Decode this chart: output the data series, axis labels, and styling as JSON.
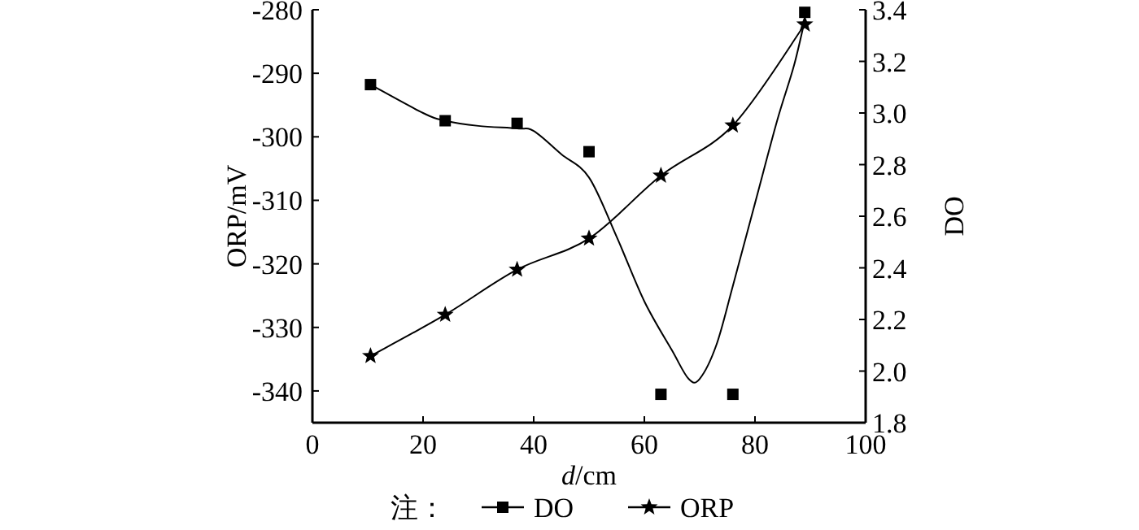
{
  "chart_data": {
    "type": "scatter",
    "xlabel": "*d*/cm",
    "ylabel": "ORP/mV",
    "y2label": "DO",
    "legend_title": "注：",
    "legend": "bottom",
    "xlim": [
      0,
      100
    ],
    "xticks": [
      0,
      20,
      40,
      60,
      80,
      100
    ],
    "ylim": [
      -345,
      -280
    ],
    "yticks": [
      -340,
      -330,
      -320,
      -310,
      -300,
      -290,
      -280
    ],
    "y2lim": [
      1.8,
      3.4
    ],
    "y2ticks": [
      1.8,
      {
        "value": 2,
        "label": "2.0"
      },
      2.2,
      2.4,
      2.6,
      2.8,
      {
        "value": 3,
        "label": "3.0"
      },
      3.2,
      3.4
    ],
    "series": [
      {
        "name": "DO",
        "axis": "y2",
        "marker": "square",
        "color": "#000000",
        "x": [
          10.5,
          24,
          37,
          50,
          63,
          76,
          89
        ],
        "values": [
          3.11,
          2.97,
          2.96,
          2.85,
          1.91,
          1.91,
          3.39
        ]
      },
      {
        "name": "ORP",
        "type": "line",
        "marker": "star",
        "color": "#000000",
        "x": [
          10.5,
          24,
          37,
          50,
          63,
          76,
          89
        ],
        "values": [
          -334.5,
          -328.0,
          -320.9,
          -316.0,
          -306.1,
          -298.2,
          -282.3
        ]
      },
      {
        "type": "line",
        "axis": "y2",
        "marker": "none",
        "color": "#000000",
        "x": [
          10.5,
          20,
          24,
          30,
          37,
          40,
          45,
          50,
          55,
          60,
          65,
          68,
          70,
          73,
          76,
          80,
          84,
          87,
          89
        ],
        "values": [
          3.11,
          3.0,
          2.97,
          2.95,
          2.94,
          2.93,
          2.84,
          2.75,
          2.52,
          2.27,
          2.08,
          1.97,
          1.97,
          2.1,
          2.33,
          2.65,
          2.97,
          3.18,
          3.36
        ]
      }
    ]
  }
}
